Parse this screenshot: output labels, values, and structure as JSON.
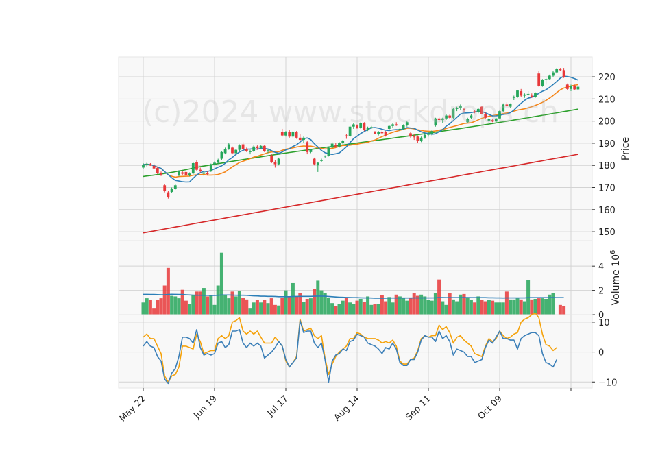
{
  "watermark": "(c)2024 www.stockdrops.ch",
  "colors": {
    "up": "#26a65b",
    "down": "#e8383a",
    "ma_fast": "#2c7fb8",
    "ma_mid": "#f58518",
    "ma_slow": "#2ca02c",
    "ma_long": "#d62728",
    "vol_ma": "#2c7fb8",
    "osc_a": "#3b7fb8",
    "osc_b": "#f5a20a",
    "panel_bg": "#f8f8f8",
    "grid": "#d3d3d3"
  },
  "chart_data": {
    "type": "candlestick",
    "x_start_label": "May 22",
    "x_labels": [
      "May 22",
      "Jun 19",
      "Jul 17",
      "Aug 14",
      "Sep 11",
      "Oct 09"
    ],
    "x_label_index": [
      0,
      20,
      40,
      60,
      80,
      100
    ],
    "price_panel": {
      "ylabel": "Price",
      "ylim": [
        146,
        229
      ],
      "yticks": [
        "150",
        "160",
        "170",
        "180",
        "190",
        "200",
        "210",
        "220"
      ],
      "ytick_values": [
        150,
        160,
        170,
        180,
        190,
        200,
        210,
        220
      ],
      "ohlc": [
        [
          179.0,
          181.0,
          178.5,
          180.3
        ],
        [
          180.2,
          181.2,
          179.5,
          180.7
        ],
        [
          180.5,
          181.0,
          179.8,
          179.9
        ],
        [
          179.8,
          180.8,
          178.4,
          178.6
        ],
        [
          178.8,
          179.5,
          176.0,
          176.5
        ],
        [
          176.5,
          177.2,
          175.2,
          175.8
        ],
        [
          171.0,
          171.5,
          167.8,
          168.5
        ],
        [
          167.8,
          168.5,
          165.0,
          165.8
        ],
        [
          168.0,
          170.0,
          167.5,
          169.5
        ],
        [
          169.5,
          171.5,
          169.0,
          171.0
        ],
        [
          175.5,
          177.8,
          175.0,
          177.5
        ],
        [
          176.8,
          177.5,
          175.5,
          176.2
        ],
        [
          177.0,
          177.5,
          175.2,
          175.6
        ],
        [
          175.6,
          176.8,
          175.0,
          176.3
        ],
        [
          176.3,
          181.5,
          176.0,
          181.0
        ],
        [
          181.5,
          182.5,
          177.5,
          178.0
        ],
        [
          178.0,
          179.0,
          176.8,
          177.5
        ],
        [
          176.2,
          177.2,
          175.2,
          176.8
        ],
        [
          176.5,
          177.2,
          175.5,
          176.0
        ],
        [
          177.5,
          180.8,
          177.0,
          180.5
        ],
        [
          180.5,
          181.8,
          180.0,
          181.2
        ],
        [
          181.2,
          183.0,
          180.5,
          182.3
        ],
        [
          183.0,
          186.5,
          182.5,
          186.0
        ],
        [
          185.5,
          188.0,
          185.0,
          187.5
        ],
        [
          187.5,
          190.0,
          187.0,
          189.5
        ],
        [
          188.0,
          188.5,
          185.0,
          185.5
        ],
        [
          185.5,
          187.5,
          185.0,
          187.0
        ],
        [
          187.0,
          189.5,
          186.5,
          189.0
        ],
        [
          189.5,
          190.5,
          186.5,
          187.5
        ],
        [
          187.5,
          188.0,
          186.0,
          186.5
        ],
        [
          186.0,
          187.0,
          185.0,
          186.5
        ],
        [
          186.5,
          189.0,
          186.0,
          188.5
        ],
        [
          188.5,
          189.0,
          187.0,
          187.8
        ],
        [
          187.8,
          189.0,
          187.5,
          188.8
        ],
        [
          188.8,
          189.2,
          186.0,
          186.5
        ],
        [
          186.5,
          187.5,
          185.5,
          186.8
        ],
        [
          184.5,
          185.0,
          181.0,
          181.5
        ],
        [
          181.5,
          182.5,
          179.0,
          180.5
        ],
        [
          180.5,
          183.5,
          180.0,
          183.0
        ],
        [
          195.0,
          196.5,
          193.0,
          193.5
        ],
        [
          193.5,
          195.5,
          193.0,
          195.2
        ],
        [
          195.0,
          196.0,
          192.5,
          193.0
        ],
        [
          193.0,
          195.5,
          192.5,
          195.0
        ],
        [
          195.0,
          195.5,
          192.0,
          192.5
        ],
        [
          192.5,
          194.0,
          191.0,
          191.5
        ],
        [
          191.5,
          193.0,
          190.0,
          192.5
        ],
        [
          190.5,
          191.0,
          185.0,
          186.0
        ],
        [
          186.0,
          187.5,
          185.5,
          187.2
        ],
        [
          183.0,
          183.5,
          180.0,
          180.5
        ],
        [
          180.0,
          181.5,
          177.0,
          181.2
        ],
        [
          182.0,
          183.0,
          181.5,
          182.5
        ],
        [
          184.0,
          184.5,
          183.5,
          184.3
        ],
        [
          184.3,
          188.5,
          184.0,
          188.0
        ],
        [
          188.0,
          190.5,
          187.5,
          189.8
        ],
        [
          189.0,
          190.0,
          188.0,
          188.5
        ],
        [
          188.5,
          190.5,
          188.0,
          190.0
        ],
        [
          190.0,
          191.5,
          189.5,
          191.0
        ],
        [
          193.5,
          194.0,
          192.0,
          193.2
        ],
        [
          193.2,
          198.0,
          192.8,
          197.5
        ],
        [
          197.5,
          199.0,
          196.5,
          198.5
        ],
        [
          198.0,
          198.5,
          196.5,
          197.0
        ],
        [
          197.0,
          199.5,
          196.5,
          199.2
        ],
        [
          199.0,
          199.5,
          195.5,
          196.0
        ],
        [
          196.0,
          197.5,
          195.5,
          197.0
        ],
        [
          197.0,
          197.8,
          196.5,
          197.3
        ],
        [
          195.0,
          195.5,
          194.0,
          194.3
        ],
        [
          194.3,
          195.5,
          193.5,
          195.2
        ],
        [
          195.2,
          195.8,
          194.0,
          194.5
        ],
        [
          195.0,
          195.5,
          193.0,
          193.5
        ],
        [
          196.5,
          198.0,
          196.0,
          197.8
        ],
        [
          197.8,
          199.0,
          197.0,
          198.5
        ],
        [
          198.5,
          199.5,
          197.8,
          198.0
        ],
        [
          196.0,
          197.0,
          195.5,
          196.5
        ],
        [
          196.5,
          198.5,
          196.0,
          198.2
        ],
        [
          198.2,
          200.0,
          197.5,
          199.5
        ],
        [
          194.5,
          195.0,
          192.5,
          193.0
        ],
        [
          193.0,
          194.0,
          191.5,
          192.8
        ],
        [
          193.0,
          193.5,
          190.0,
          191.0
        ],
        [
          191.0,
          193.0,
          190.5,
          192.5
        ],
        [
          192.5,
          194.5,
          192.0,
          193.8
        ],
        [
          193.8,
          195.0,
          193.0,
          194.2
        ],
        [
          194.2,
          196.0,
          193.5,
          195.5
        ],
        [
          198.0,
          201.5,
          197.5,
          201.2
        ],
        [
          201.2,
          202.0,
          199.5,
          200.5
        ],
        [
          200.5,
          201.5,
          199.0,
          201.2
        ],
        [
          201.2,
          203.0,
          200.5,
          202.5
        ],
        [
          202.5,
          203.0,
          201.0,
          201.5
        ],
        [
          201.5,
          206.0,
          201.0,
          205.5
        ],
        [
          205.5,
          206.5,
          204.5,
          205.8
        ],
        [
          205.8,
          207.5,
          205.0,
          207.0
        ],
        [
          205.5,
          206.0,
          204.0,
          205.0
        ],
        [
          199.5,
          201.5,
          199.0,
          201.0
        ],
        [
          201.5,
          203.0,
          201.0,
          202.5
        ],
        [
          204.5,
          205.0,
          203.5,
          204.2
        ],
        [
          204.2,
          206.0,
          203.5,
          205.5
        ],
        [
          206.5,
          206.8,
          203.0,
          203.2
        ],
        [
          203.2,
          204.0,
          201.0,
          201.5
        ],
        [
          200.0,
          201.5,
          199.0,
          201.0
        ],
        [
          200.5,
          201.0,
          199.5,
          199.8
        ],
        [
          199.8,
          201.5,
          199.5,
          201.2
        ],
        [
          201.2,
          205.0,
          201.0,
          204.5
        ],
        [
          204.5,
          208.0,
          204.0,
          207.5
        ],
        [
          207.5,
          208.5,
          206.5,
          207.0
        ],
        [
          206.5,
          208.0,
          206.0,
          207.8
        ],
        [
          210.5,
          211.5,
          209.5,
          211.0
        ],
        [
          211.0,
          214.0,
          210.5,
          213.8
        ],
        [
          213.5,
          214.5,
          211.0,
          211.5
        ],
        [
          211.5,
          212.5,
          210.5,
          212.0
        ],
        [
          212.0,
          213.5,
          211.5,
          212.3
        ],
        [
          211.5,
          212.5,
          210.5,
          211.0
        ],
        [
          211.0,
          213.0,
          210.5,
          212.8
        ],
        [
          221.5,
          222.5,
          215.5,
          216.0
        ],
        [
          216.0,
          219.0,
          215.5,
          218.5
        ],
        [
          218.5,
          219.5,
          216.5,
          219.0
        ],
        [
          219.0,
          221.0,
          218.5,
          220.5
        ],
        [
          220.5,
          222.5,
          220.0,
          222.0
        ],
        [
          222.0,
          224.0,
          221.5,
          223.5
        ],
        [
          223.5,
          224.0,
          222.5,
          223.0
        ],
        [
          223.0,
          224.0,
          219.5,
          219.8
        ],
        [
          216.5,
          217.0,
          214.0,
          214.5
        ],
        [
          214.5,
          216.5,
          213.5,
          216.0
        ],
        [
          216.0,
          216.5,
          214.0,
          214.3
        ],
        [
          214.3,
          216.0,
          213.8,
          215.5
        ]
      ]
    },
    "volume_panel": {
      "ylabel": "Volume  10^6",
      "ylim": [
        0,
        6.1
      ],
      "yticks": [
        "0",
        "2",
        "4"
      ],
      "ytick_values": [
        0,
        2,
        4
      ],
      "values": [
        1.0,
        1.35,
        1.2,
        0.5,
        1.2,
        1.35,
        2.4,
        3.85,
        1.55,
        1.5,
        1.35,
        2.05,
        1.15,
        0.9,
        1.6,
        1.9,
        1.9,
        2.2,
        1.5,
        1.6,
        0.8,
        2.4,
        5.1,
        1.6,
        1.35,
        1.9,
        1.5,
        1.95,
        1.4,
        1.25,
        0.5,
        1.0,
        1.2,
        1.0,
        1.2,
        0.95,
        1.35,
        0.8,
        0.75,
        1.4,
        2.0,
        1.5,
        2.6,
        1.5,
        1.8,
        1.05,
        1.3,
        1.35,
        2.1,
        2.8,
        2.0,
        1.8,
        1.4,
        0.95,
        0.7,
        0.9,
        1.15,
        1.4,
        1.0,
        0.85,
        1.15,
        1.3,
        1.05,
        1.5,
        0.8,
        0.85,
        0.9,
        1.6,
        1.1,
        1.45,
        1.0,
        1.65,
        1.5,
        1.4,
        1.15,
        1.4,
        1.8,
        1.55,
        1.65,
        1.5,
        1.2,
        1.15,
        1.8,
        2.9,
        1.1,
        0.8,
        1.75,
        1.25,
        1.1,
        1.65,
        1.7,
        1.4,
        1.2,
        1.0,
        1.5,
        1.2,
        1.1,
        1.2,
        1.15,
        1.0,
        1.0,
        1.0,
        1.9,
        1.25,
        1.25,
        1.35,
        1.25,
        1.1,
        2.85,
        1.25,
        1.3,
        1.35,
        1.35,
        1.3,
        1.65,
        1.8,
        0,
        0.8,
        0.7
      ],
      "ma_values": [
        1.67,
        1.67,
        1.66,
        1.66,
        1.65,
        1.64,
        1.64,
        1.66,
        1.68,
        1.67,
        1.66,
        1.66,
        1.64,
        1.62,
        1.61,
        1.6,
        1.6,
        1.59,
        1.59,
        1.58,
        1.58,
        1.6,
        1.62,
        1.62,
        1.62,
        1.61,
        1.6,
        1.6,
        1.6,
        1.59,
        1.57,
        1.55,
        1.54,
        1.52,
        1.52,
        1.51,
        1.51,
        1.5,
        1.48,
        1.48,
        1.48,
        1.48,
        1.5,
        1.5,
        1.51,
        1.51,
        1.51,
        1.51,
        1.52,
        1.53,
        1.53,
        1.52,
        1.5,
        1.48,
        1.46,
        1.44,
        1.43,
        1.42,
        1.41,
        1.4,
        1.4,
        1.39,
        1.38,
        1.38,
        1.37,
        1.36,
        1.36,
        1.36,
        1.36,
        1.37,
        1.37,
        1.37,
        1.37,
        1.37,
        1.37,
        1.37,
        1.38,
        1.38,
        1.38,
        1.38,
        1.38,
        1.38,
        1.39,
        1.41,
        1.41,
        1.4,
        1.4,
        1.4,
        1.4,
        1.4,
        1.41,
        1.41,
        1.4,
        1.4,
        1.4,
        1.4,
        1.4,
        1.39,
        1.39,
        1.38,
        1.38,
        1.37,
        1.38,
        1.38,
        1.38,
        1.38,
        1.38,
        1.38,
        1.4,
        1.4,
        1.4,
        1.4,
        1.4,
        1.4,
        1.4,
        1.41,
        1.4,
        1.4,
        1.4
      ]
    },
    "oscillator_panel": {
      "ylim": [
        -12,
        12.5
      ],
      "yticks": [
        "−10",
        "0",
        "10"
      ],
      "ytick_values": [
        -10,
        0,
        10
      ],
      "series_a": [
        2,
        3.5,
        2,
        1.5,
        -1.5,
        -3,
        -9,
        -10.5,
        -7,
        -5.5,
        -1.5,
        5,
        5,
        4.5,
        3,
        7.5,
        1.5,
        -1,
        -0.5,
        -1,
        -0.5,
        3,
        3.5,
        1.5,
        2.5,
        7,
        7,
        7.5,
        3,
        1.5,
        3,
        2,
        3,
        2,
        -2,
        -1,
        0,
        1.5,
        3.5,
        2,
        -2.5,
        -5,
        -3.5,
        -2,
        10.5,
        6.5,
        7,
        7,
        3,
        1.5,
        3,
        -2.5,
        -10,
        -3,
        -1,
        -0.5,
        1,
        0.5,
        3.5,
        4,
        6,
        5.5,
        5,
        3,
        2.5,
        2,
        1,
        -0.5,
        1.5,
        1,
        3,
        1,
        -3.5,
        -4.5,
        -4.5,
        -2.5,
        -2.5,
        0,
        4,
        5.5,
        5,
        5,
        3.5,
        7,
        4.5,
        5.5,
        3.5,
        -1,
        1,
        0.5,
        0,
        -1.5,
        -1.5,
        -3.5,
        -3,
        -2.5,
        1.5,
        4,
        3,
        5,
        7,
        4.5,
        4.5,
        4,
        4,
        1,
        4.5,
        5.5,
        6,
        6.5,
        6.5,
        5.5,
        -0.5,
        -3.5,
        -4,
        -5,
        -2.5
      ],
      "series_b": [
        5,
        6,
        4.5,
        4.5,
        2,
        -0.5,
        -8,
        -10,
        -8,
        -7.5,
        -5,
        2,
        2,
        1.5,
        1,
        6,
        3.5,
        -0.5,
        0,
        0.5,
        0.5,
        4.5,
        5.5,
        4.5,
        5.5,
        10,
        10.5,
        11.5,
        7,
        6,
        7,
        6,
        7,
        5,
        3,
        3,
        3,
        5,
        3.5,
        2,
        -3,
        -5,
        -3.5,
        -1.5,
        11,
        7,
        7.5,
        8,
        5.5,
        4.5,
        5.5,
        -2,
        -7.5,
        -4,
        -1.5,
        0,
        1,
        2,
        4.5,
        4.5,
        6.5,
        6,
        5,
        4.5,
        4.5,
        4.5,
        4,
        3,
        3.5,
        3,
        4,
        2,
        -3,
        -4,
        -4,
        -2.5,
        -2,
        0.5,
        4.5,
        5.5,
        5,
        5.5,
        5.5,
        9,
        7.5,
        8.5,
        6.5,
        3,
        5,
        5.5,
        4,
        3,
        2,
        -0.5,
        -1,
        -1.5,
        2,
        4.5,
        3.5,
        4.5,
        7,
        5.5,
        4.5,
        5,
        6,
        6.5,
        10,
        11,
        11.5,
        12.5,
        13,
        11.5,
        6,
        2.5,
        2,
        0.5,
        1.5
      ]
    }
  }
}
